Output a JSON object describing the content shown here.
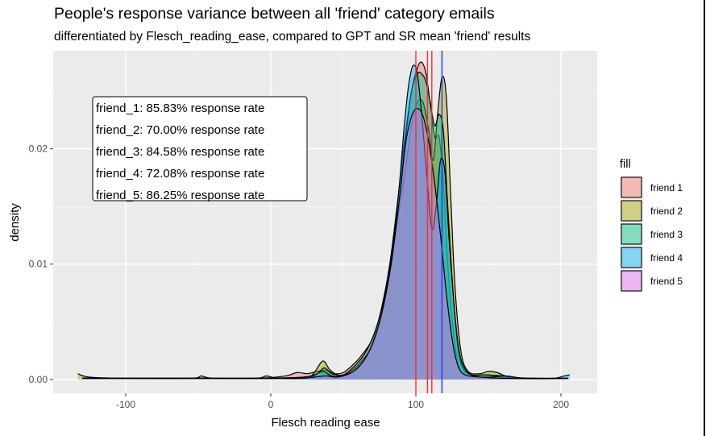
{
  "chart_data": {
    "type": "area",
    "title": "People's response variance between all 'friend' category emails",
    "subtitle": "differentiated by Flesch_reading_ease, compared to GPT and SR mean 'friend' results",
    "xlabel": "Flesch reading ease",
    "ylabel": "density",
    "xlim": [
      -150,
      225
    ],
    "ylim": [
      -0.0012,
      0.0285
    ],
    "x_ticks": [
      -100,
      0,
      100,
      200
    ],
    "y_ticks": [
      0.0,
      0.01,
      0.02
    ],
    "x_tick_labels": [
      "-100",
      "0",
      "100",
      "200"
    ],
    "y_tick_labels": [
      "0.00",
      "0.01",
      "0.02"
    ],
    "grid": true,
    "legend": {
      "title": "fill",
      "placement": "right",
      "entries": [
        "friend 1",
        "friend 2",
        "friend 3",
        "friend 4",
        "friend 5"
      ]
    },
    "series": [
      {
        "name": "friend 1",
        "color": "#F8766D",
        "points": [
          [
            -130,
            0.0001
          ],
          [
            -60,
            0.0001
          ],
          [
            -10,
            0.0001
          ],
          [
            10,
            0.0003
          ],
          [
            18,
            0.0006
          ],
          [
            25,
            0.0005
          ],
          [
            32,
            0.0007
          ],
          [
            38,
            0.0008
          ],
          [
            44,
            0.0005
          ],
          [
            50,
            0.0006
          ],
          [
            56,
            0.0012
          ],
          [
            62,
            0.002
          ],
          [
            70,
            0.0035
          ],
          [
            76,
            0.006
          ],
          [
            82,
            0.01
          ],
          [
            87,
            0.015
          ],
          [
            92,
            0.0205
          ],
          [
            97,
            0.025
          ],
          [
            101,
            0.027
          ],
          [
            104,
            0.0275
          ],
          [
            107,
            0.0265
          ],
          [
            110,
            0.0238
          ],
          [
            113,
            0.021
          ],
          [
            116,
            0.021
          ],
          [
            119,
            0.017
          ],
          [
            122,
            0.01
          ],
          [
            126,
            0.004
          ],
          [
            130,
            0.001
          ],
          [
            136,
            0.0003
          ],
          [
            150,
            0.0004
          ],
          [
            165,
            0.0001
          ],
          [
            205,
            0.0001
          ]
        ]
      },
      {
        "name": "friend 2",
        "color": "#A3A500",
        "points": [
          [
            -133,
            0.0005
          ],
          [
            -125,
            0.0002
          ],
          [
            -100,
            0.0001
          ],
          [
            -55,
            0.0001
          ],
          [
            -48,
            0.0003
          ],
          [
            -40,
            0.0001
          ],
          [
            -10,
            0.0001
          ],
          [
            -3,
            0.0003
          ],
          [
            5,
            0.0001
          ],
          [
            25,
            0.0002
          ],
          [
            30,
            0.0006
          ],
          [
            36,
            0.0016
          ],
          [
            41,
            0.0008
          ],
          [
            48,
            0.0003
          ],
          [
            55,
            0.0007
          ],
          [
            62,
            0.0015
          ],
          [
            70,
            0.003
          ],
          [
            78,
            0.0065
          ],
          [
            85,
            0.012
          ],
          [
            92,
            0.0175
          ],
          [
            97,
            0.022
          ],
          [
            101,
            0.024
          ],
          [
            105,
            0.024
          ],
          [
            109,
            0.0215
          ],
          [
            112,
            0.019
          ],
          [
            115,
            0.023
          ],
          [
            118,
            0.0262
          ],
          [
            121,
            0.0245
          ],
          [
            124,
            0.016
          ],
          [
            127,
            0.008
          ],
          [
            131,
            0.0025
          ],
          [
            136,
            0.0007
          ],
          [
            144,
            0.0005
          ],
          [
            150,
            0.0007
          ],
          [
            156,
            0.0006
          ],
          [
            165,
            0.0002
          ],
          [
            185,
            0.0001
          ],
          [
            205,
            0.0001
          ]
        ]
      },
      {
        "name": "friend 3",
        "color": "#00BF7D",
        "points": [
          [
            -130,
            0.0001
          ],
          [
            -50,
            0.0001
          ],
          [
            -5,
            0.0001
          ],
          [
            25,
            0.0002
          ],
          [
            32,
            0.0005
          ],
          [
            37,
            0.001
          ],
          [
            42,
            0.0005
          ],
          [
            50,
            0.0004
          ],
          [
            58,
            0.0012
          ],
          [
            66,
            0.0025
          ],
          [
            74,
            0.005
          ],
          [
            82,
            0.0095
          ],
          [
            88,
            0.015
          ],
          [
            93,
            0.021
          ],
          [
            97,
            0.025
          ],
          [
            101,
            0.0265
          ],
          [
            104,
            0.0265
          ],
          [
            107,
            0.0258
          ],
          [
            110,
            0.024
          ],
          [
            113,
            0.022
          ],
          [
            116,
            0.023
          ],
          [
            119,
            0.0215
          ],
          [
            122,
            0.015
          ],
          [
            126,
            0.007
          ],
          [
            130,
            0.002
          ],
          [
            136,
            0.0005
          ],
          [
            148,
            0.0004
          ],
          [
            160,
            0.0003
          ],
          [
            172,
            0.0001
          ],
          [
            205,
            0.0001
          ]
        ]
      },
      {
        "name": "friend 4",
        "color": "#00B0F6",
        "points": [
          [
            -130,
            0.0001
          ],
          [
            -50,
            0.0001
          ],
          [
            -5,
            0.0001
          ],
          [
            22,
            0.0002
          ],
          [
            30,
            0.0004
          ],
          [
            36,
            0.0007
          ],
          [
            42,
            0.0003
          ],
          [
            50,
            0.0003
          ],
          [
            58,
            0.0008
          ],
          [
            66,
            0.002
          ],
          [
            74,
            0.0045
          ],
          [
            82,
            0.0095
          ],
          [
            88,
            0.016
          ],
          [
            92,
            0.022
          ],
          [
            95,
            0.0255
          ],
          [
            98,
            0.0272
          ],
          [
            101,
            0.0265
          ],
          [
            104,
            0.023
          ],
          [
            108,
            0.017
          ],
          [
            111,
            0.013
          ],
          [
            114,
            0.015
          ],
          [
            117,
            0.019
          ],
          [
            120,
            0.018
          ],
          [
            123,
            0.012
          ],
          [
            127,
            0.0055
          ],
          [
            131,
            0.0018
          ],
          [
            138,
            0.0004
          ],
          [
            150,
            0.0002
          ],
          [
            162,
            0.0003
          ],
          [
            175,
            0.0001
          ],
          [
            195,
            0.0001
          ],
          [
            202,
            0.0003
          ],
          [
            206,
            0.0004
          ]
        ]
      },
      {
        "name": "friend 5",
        "color": "#E76BF3",
        "points": [
          [
            -130,
            0.0001
          ],
          [
            -50,
            0.0001
          ],
          [
            -5,
            0.0001
          ],
          [
            20,
            0.0001
          ],
          [
            30,
            0.0002
          ],
          [
            38,
            0.0003
          ],
          [
            45,
            0.0002
          ],
          [
            52,
            0.0004
          ],
          [
            60,
            0.001
          ],
          [
            68,
            0.0025
          ],
          [
            76,
            0.0055
          ],
          [
            83,
            0.01
          ],
          [
            89,
            0.016
          ],
          [
            93,
            0.0205
          ],
          [
            97,
            0.0228
          ],
          [
            101,
            0.0235
          ],
          [
            105,
            0.0228
          ],
          [
            109,
            0.0205
          ],
          [
            113,
            0.017
          ],
          [
            117,
            0.0125
          ],
          [
            121,
            0.0075
          ],
          [
            125,
            0.0035
          ],
          [
            129,
            0.0012
          ],
          [
            134,
            0.0004
          ],
          [
            145,
            0.0002
          ],
          [
            160,
            0.0001
          ],
          [
            205,
            0.0001
          ]
        ]
      }
    ],
    "reference_lines": [
      {
        "x": 100,
        "color": "#FF2A2A"
      },
      {
        "x": 108,
        "color": "#FF2A2A"
      },
      {
        "x": 111,
        "color": "#FF2A2A"
      },
      {
        "x": 118,
        "color": "#2233FF"
      }
    ],
    "annotation_lines": [
      "friend_1: 85.83% response rate",
      "friend_2: 70.00% response rate",
      "friend_3: 84.58% response rate",
      "friend_4: 72.08% response rate",
      "friend_5: 86.25% response rate"
    ]
  }
}
